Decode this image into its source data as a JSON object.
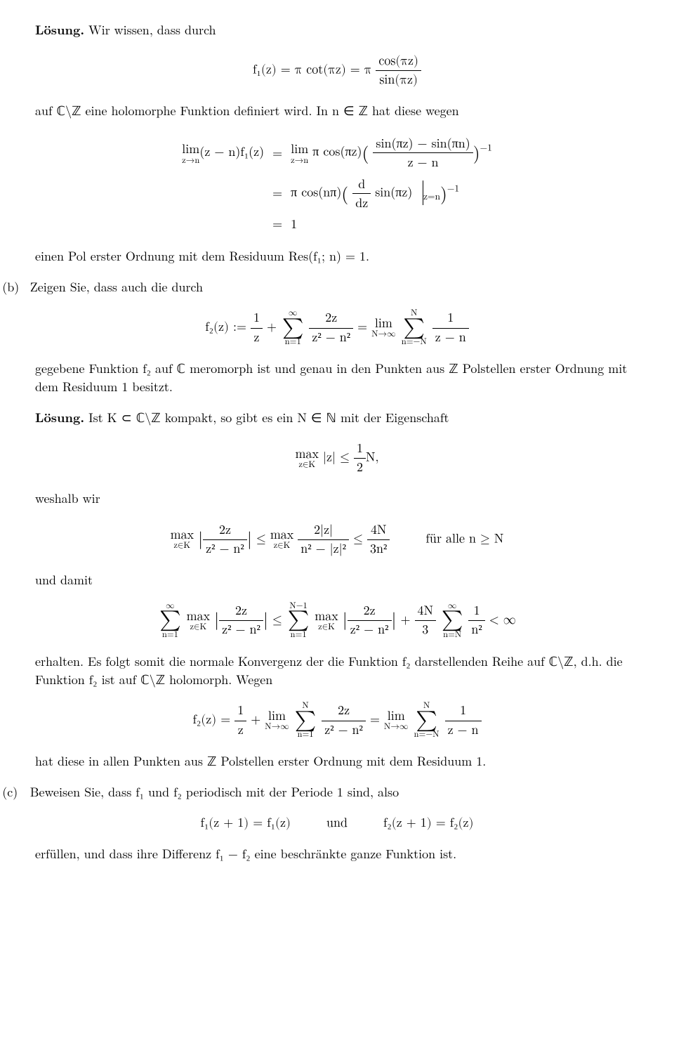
{
  "colors": {
    "text": "#000000",
    "background": "#ffffff"
  },
  "p1": {
    "lead_bold": "Lösung.",
    "lead_rest": " Wir wissen, dass durch"
  },
  "eq1": {
    "lhs": "f₁(z) = π cot(πz) = π",
    "num": "cos(πz)",
    "den": "sin(πz)"
  },
  "p2": "auf ℂ\\ℤ eine holomorphe Funktion definiert wird. In n ∈ ℤ hat diese wegen",
  "eq2": {
    "r1_lhs_op": "lim",
    "r1_lhs_sub": "z→n",
    "r1_lhs_arg": "(z − n)f₁(z)",
    "eq": "=",
    "r1_rhs_op": "lim",
    "r1_rhs_sub": "z→n",
    "r1_rhs_pre": " π cos(πz)",
    "r1_rhs_num": "sin(πz) − sin(πn)",
    "r1_rhs_den": "z − n",
    "r1_exp": "−1",
    "r2_rhs_pre": "π cos(nπ)",
    "r2_rhs_num": "d",
    "r2_rhs_den": "dz",
    "r2_rhs_post": " sin(πz)",
    "r2_rhs_eval": "z=n",
    "r2_exp": "−1",
    "r3_rhs": "1"
  },
  "p3": "einen Pol erster Ordnung mit dem Residuum Res(f₁; n) = 1.",
  "item_b": "(b)",
  "p4": "Zeigen Sie, dass auch die durch",
  "eq3": {
    "lhs": "f₂(z) := ",
    "t1_num": "1",
    "t1_den": "z",
    "plus": " + ",
    "sum1_top": "∞",
    "sum1_bot": "n=1",
    "t2_num": "2z",
    "t2_den": "z² − n²",
    "mid": " = ",
    "lim_op": "lim",
    "lim_sub": "N→∞",
    "sum2_top": "N",
    "sum2_bot": "n=−N",
    "t3_num": "1",
    "t3_den": "z − n"
  },
  "p5": "gegebene Funktion f₂ auf ℂ meromorph ist und genau in den Punkten aus ℤ Polstellen erster Ordnung mit dem Residuum 1 besitzt.",
  "p6": {
    "lead_bold": "Lösung.",
    "rest": " Ist K ⊂ ℂ\\ℤ kompakt, so gibt es ein N ∈ ℕ mit der Eigenschaft"
  },
  "eq4": {
    "max_op": "max",
    "max_sub": "z∈K",
    "body": "|z| ≤ ",
    "num": "1",
    "den": "2",
    "after": "N,"
  },
  "p7": "weshalb wir",
  "eq5": {
    "max_op": "max",
    "max_sub": "z∈K",
    "a_num": "2z",
    "a_den": "z² − n²",
    "le": " ≤ ",
    "b_num": "2|z|",
    "b_den": "n² − |z|²",
    "c_num": "4N",
    "c_den": "3n²",
    "tail": "für alle n ≥ N"
  },
  "p8": "und damit",
  "eq6": {
    "sum1_top": "∞",
    "sum1_bot": "n=1",
    "max_op": "max",
    "max_sub": "z∈K",
    "a_num": "2z",
    "a_den": "z² − n²",
    "le": " ≤ ",
    "sum2_top": "N−1",
    "sum2_bot": "n=1",
    "plus": " + ",
    "c_num": "4N",
    "c_den": "3",
    "sum3_top": "∞",
    "sum3_bot": "n=N",
    "d_num": "1",
    "d_den": "n²",
    "lt": " < ∞"
  },
  "p9": "erhalten. Es folgt somit die normale Konvergenz der die Funktion f₂ darstellenden Reihe auf ℂ\\ℤ, d.h. die Funktion f₂ ist auf ℂ\\ℤ holomorph. Wegen",
  "eq7": {
    "lhs": "f₂(z) = ",
    "t1_num": "1",
    "t1_den": "z",
    "plus": " + ",
    "lim_op": "lim",
    "lim_sub": "N→∞",
    "sum1_top": "N",
    "sum1_bot": "n=1",
    "t2_num": "2z",
    "t2_den": "z² − n²",
    "mid": " = ",
    "sum2_top": "N",
    "sum2_bot": "n=−N",
    "t3_num": "1",
    "t3_den": "z − n"
  },
  "p10": "hat diese in allen Punkten aus ℤ Polstellen erster Ordnung mit dem Residuum 1.",
  "item_c": "(c)",
  "p11": "Beweisen Sie, dass f₁ und f₂ periodisch mit der Periode 1 sind, also",
  "eq8": {
    "a": "f₁(z + 1) = f₁(z)",
    "und": "und",
    "b": "f₂(z + 1) = f₂(z)"
  },
  "p12": "erfüllen, und dass ihre Differenz f₁ − f₂ eine beschränkte ganze Funktion ist."
}
